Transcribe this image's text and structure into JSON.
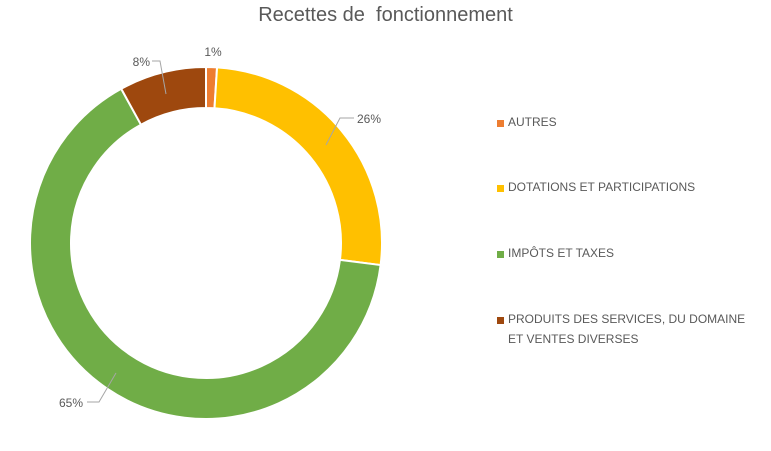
{
  "chart_data": {
    "type": "pie",
    "donut": true,
    "title": "Recettes de  fonctionnement",
    "categories": [
      "AUTRES",
      "DOTATIONS ET PARTICIPATIONS",
      "IMPÔTS ET TAXES",
      "PRODUITS DES SERVICES, DU DOMAINE\nET VENTES DIVERSES"
    ],
    "values": [
      1,
      26,
      65,
      8
    ],
    "data_labels": [
      "1%",
      "26%",
      "65%",
      "8%"
    ],
    "colors": [
      "#ED7D31",
      "#FFC000",
      "#70AD47",
      "#9E480E"
    ],
    "legend_position": "right"
  }
}
